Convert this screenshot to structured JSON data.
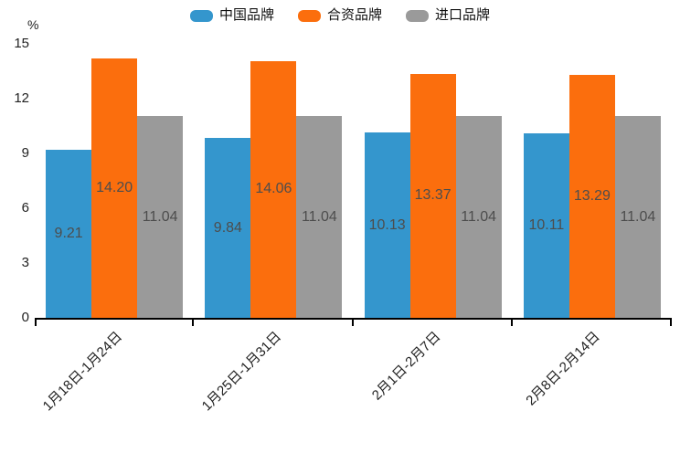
{
  "chart_data": {
    "type": "bar",
    "title": "",
    "unit_label": "%",
    "categories": [
      "1月18日-1月24日",
      "1月25日-1月31日",
      "2月1日-2月7日",
      "2月8日-2月14日"
    ],
    "series": [
      {
        "name": "中国品牌",
        "color": "#3496CD",
        "values": [
          9.21,
          9.84,
          10.13,
          10.11
        ]
      },
      {
        "name": "合资品牌",
        "color": "#FB6E0D",
        "values": [
          14.2,
          14.06,
          13.37,
          13.29
        ]
      },
      {
        "name": "进口品牌",
        "color": "#9A9A9A",
        "values": [
          11.04,
          11.04,
          11.04,
          11.04
        ]
      }
    ],
    "ylim": [
      0,
      15
    ],
    "yticks": [
      0,
      3,
      6,
      9,
      12,
      15
    ],
    "grid": false,
    "legend_position": "top",
    "value_labels": "inside-center",
    "value_decimals": 2,
    "value_label_color": "#4d4d4d",
    "axis_color": "#000000",
    "tick_label_color": "#222222"
  }
}
